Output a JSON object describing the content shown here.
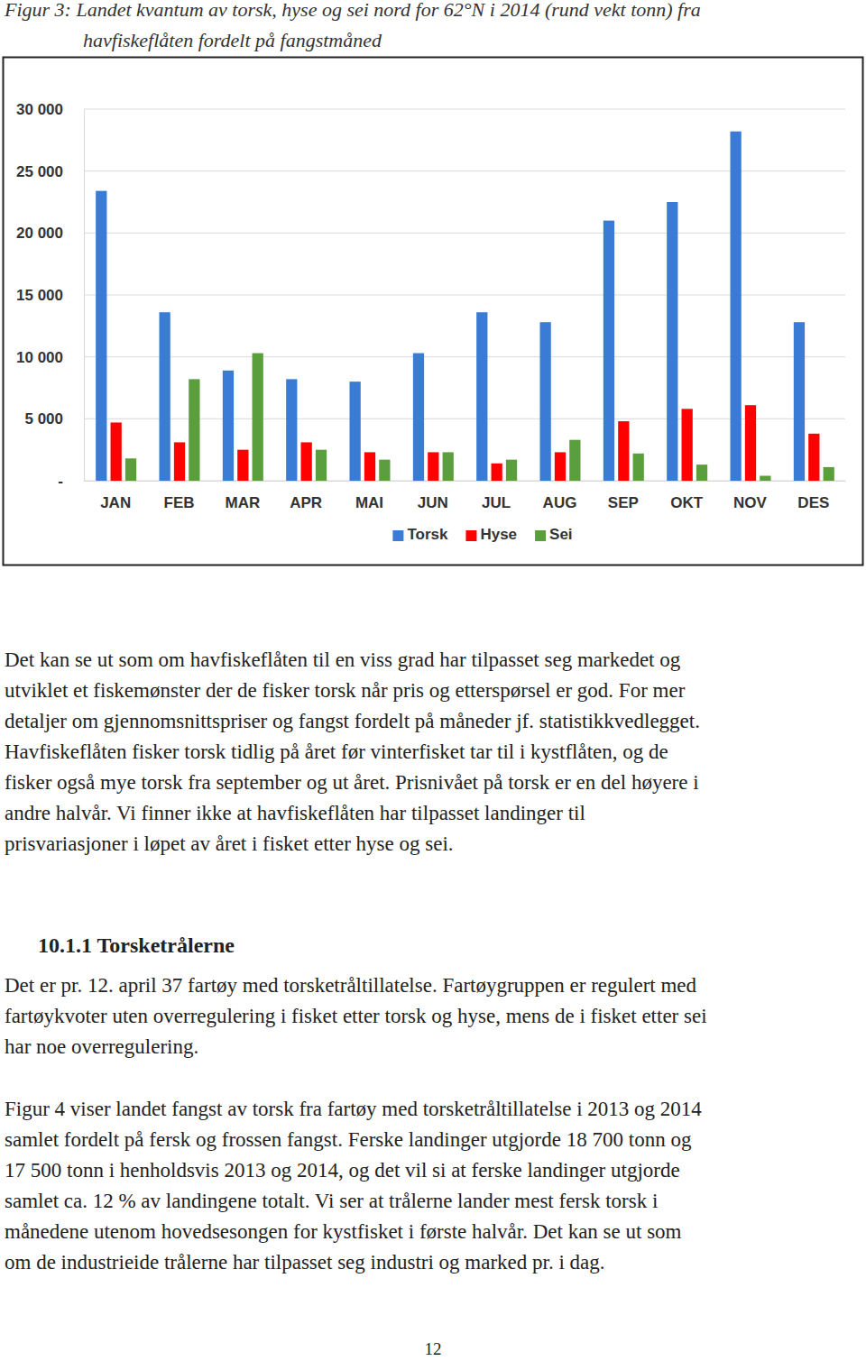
{
  "chart_data": {
    "type": "bar",
    "categories": [
      "JAN",
      "FEB",
      "MAR",
      "APR",
      "MAI",
      "JUN",
      "JUL",
      "AUG",
      "SEP",
      "OKT",
      "NOV",
      "DES"
    ],
    "series": [
      {
        "name": "Torsk",
        "color": "#3a7bd5",
        "values": [
          23400,
          13600,
          8900,
          8200,
          8000,
          10300,
          13600,
          12800,
          21000,
          22500,
          28200,
          12800
        ]
      },
      {
        "name": "Hyse",
        "color": "#ff0000",
        "values": [
          4700,
          3100,
          2500,
          3100,
          2300,
          2300,
          1400,
          2300,
          4800,
          5800,
          6100,
          3800
        ]
      },
      {
        "name": "Sei",
        "color": "#5a9e3e",
        "values": [
          1800,
          8200,
          10300,
          2500,
          1700,
          2300,
          1700,
          3300,
          2200,
          1300,
          400,
          1100
        ]
      }
    ],
    "ylim": [
      0,
      30000
    ],
    "yticks": [
      {
        "value": 0,
        "label": "-"
      },
      {
        "value": 5000,
        "label": "5 000"
      },
      {
        "value": 10000,
        "label": "10 000"
      },
      {
        "value": 15000,
        "label": "15 000"
      },
      {
        "value": 20000,
        "label": "20 000"
      },
      {
        "value": 25000,
        "label": "25 000"
      },
      {
        "value": 30000,
        "label": "30 000"
      }
    ],
    "grid": true,
    "legend": "bottom"
  },
  "document": {
    "caption": [
      "Figur 3: Landet kvantum av torsk, hyse og sei nord for 62°N i 2014 (rund vekt tonn) fra",
      "havfiskeflåten fordelt på fangstmåned"
    ],
    "paragraph_1": [
      "Det kan se ut som om havfiskeflåten til en viss grad har tilpasset seg markedet og",
      "utviklet et fiskemønster der de fisker torsk når pris og etterspørsel er god. For mer",
      "detaljer om gjennomsnittspriser og fangst fordelt på måneder jf. statistikkvedlegget.",
      "Havfiskeflåten fisker torsk tidlig på året før vinterfisket tar til i kystflåten, og de",
      "fisker også mye torsk fra september og ut året. Prisnivået på torsk er en del høyere i",
      "andre halvår. Vi finner ikke at havfiskeflåten har tilpasset landinger til",
      "prisvariasjoner i løpet av året i fisket etter hyse og sei."
    ],
    "heading": "10.1.1  Torsketrålerne",
    "paragraph_2": [
      "Det er pr. 12. april 37 fartøy med torsketråltillatelse. Fartøygruppen er regulert med",
      "fartøykvoter uten overregulering i fisket etter torsk og hyse, mens de i fisket etter sei",
      "har noe overregulering."
    ],
    "paragraph_3": [
      "Figur 4 viser landet fangst av torsk fra fartøy med torsketråltillatelse i 2013 og 2014",
      "samlet fordelt på fersk og frossen fangst. Ferske landinger utgjorde 18 700 tonn og",
      "17 500 tonn i henholdsvis 2013 og 2014, og det vil si at ferske landinger utgjorde",
      "samlet ca. 12 % av landingene totalt. Vi ser at trålerne lander mest fersk torsk i",
      "månedene utenom hovedsesongen for kystfisket i første halvår. Det kan se ut som",
      "om de industrieide trålerne har tilpasset seg industri og marked pr. i dag."
    ],
    "page_number": "12"
  }
}
